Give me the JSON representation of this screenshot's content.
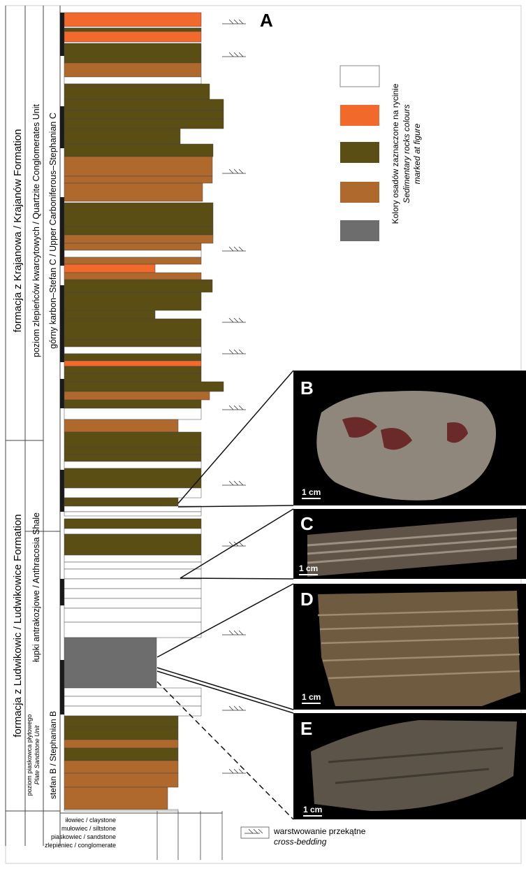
{
  "panel_letters": {
    "a": "A",
    "b": "B",
    "c": "C",
    "d": "D",
    "e": "E"
  },
  "column_headers": {
    "formation_upper": "formacja z Krajanowa / Krajanów Formation",
    "unit_upper": "poziom zlepieńców kwarcytowych / Quartzite Conglomerates Unit",
    "age_upper": "górny karbon–Stefan C / Upper Carboniferous–Stephanian C",
    "formation_lower": "formacja z Ludwikowic / Ludwikowice Formation",
    "unit_lower": "łupki antrakozjowe / Anthracosia Shale",
    "unit_bottom_pl": "poziom piaskowca płytowego",
    "unit_bottom_en": "Plate Sandstone Unit",
    "age_bottom": "stefan B / Stephanian B"
  },
  "lithology_scale": [
    "iłowiec / claystone",
    "mułowiec / siltstone",
    "piaskowiec / sandstone",
    "zlepieniec / conglomerate"
  ],
  "legend": {
    "title_pl": "Kolory osadów zaznaczone na rycinie",
    "title_en1": "Sedimentary rocks colours",
    "title_en2": "marked at figure",
    "swatch_colors": [
      "#ffffff",
      "#f26a2b",
      "#5a4e14",
      "#b0692d",
      "#6d6d6d"
    ]
  },
  "cross_bedding": {
    "pl": "warstwowanie przekątne",
    "en": "cross-bedding"
  },
  "scale_bar": "1 cm",
  "colors": {
    "orange": "#f26a2b",
    "olive": "#5a4e14",
    "brown": "#b0692d",
    "grey": "#6d6d6d",
    "white": "#ffffff",
    "black": "#1a1a1a"
  }
}
